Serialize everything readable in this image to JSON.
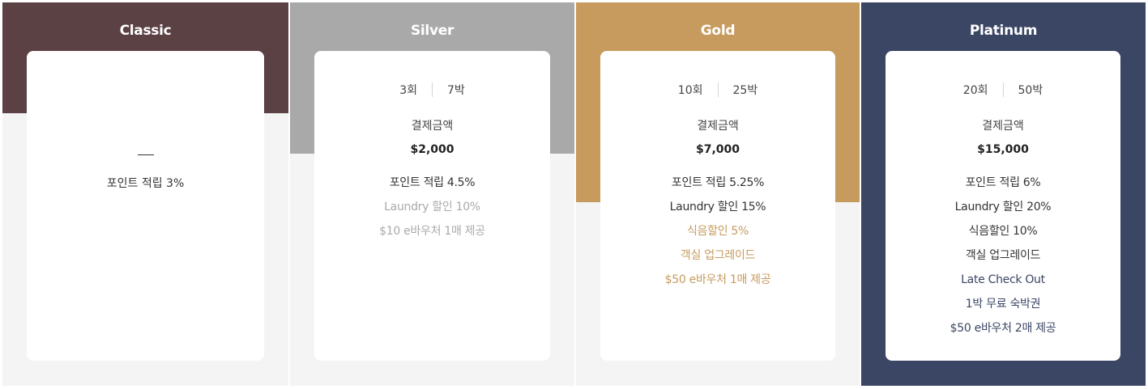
{
  "colors": {
    "classic": "#5b4044",
    "silver": "#a9a9a9",
    "gold": "#c79b5e",
    "platinum": "#3b4665",
    "muted": "#aaaaaa",
    "text": "#333333"
  },
  "tiers": [
    {
      "name": "Classic",
      "stays": "",
      "nights": "",
      "pay_label": "",
      "price": "",
      "dash": "—",
      "benefits": [
        {
          "text": "포인트 적립 3%",
          "style": "normal"
        }
      ]
    },
    {
      "name": "Silver",
      "stays": "3회",
      "nights": "7박",
      "pay_label": "결제금액",
      "price": "$2,000",
      "benefits": [
        {
          "text": "포인트 적립 4.5%",
          "style": "normal"
        },
        {
          "text": "Laundry 할인 10%",
          "style": "muted"
        },
        {
          "text": "$10 e바우처 1매 제공",
          "style": "muted"
        }
      ]
    },
    {
      "name": "Gold",
      "stays": "10회",
      "nights": "25박",
      "pay_label": "결제금액",
      "price": "$7,000",
      "benefits": [
        {
          "text": "포인트 적립 5.25%",
          "style": "normal"
        },
        {
          "text": "Laundry 할인 15%",
          "style": "normal"
        },
        {
          "text": "식음할인 5%",
          "style": "accent"
        },
        {
          "text": "객실 업그레이드",
          "style": "accent"
        },
        {
          "text": "$50 e바우처 1매 제공",
          "style": "accent"
        }
      ]
    },
    {
      "name": "Platinum",
      "stays": "20회",
      "nights": "50박",
      "pay_label": "결제금액",
      "price": "$15,000",
      "benefits": [
        {
          "text": "포인트 적립 6%",
          "style": "normal"
        },
        {
          "text": "Laundry 할인 20%",
          "style": "normal"
        },
        {
          "text": "식음할인 10%",
          "style": "normal"
        },
        {
          "text": "객실 업그레이드",
          "style": "normal"
        },
        {
          "text": "Late Check Out",
          "style": "accent"
        },
        {
          "text": "1박 무료 숙박권",
          "style": "accent"
        },
        {
          "text": "$50 e바우처 2매 제공",
          "style": "accent"
        }
      ]
    }
  ]
}
